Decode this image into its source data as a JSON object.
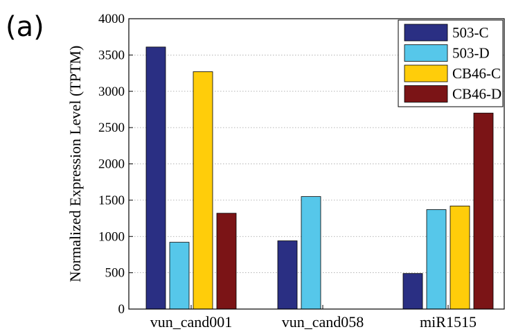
{
  "panel_label": "(a)",
  "chart_data": {
    "type": "bar",
    "title": "",
    "xlabel": "",
    "ylabel": "Normalized Expression Level (TPTM)",
    "ylim": [
      0,
      4000
    ],
    "yticks": [
      0,
      500,
      1000,
      1500,
      2000,
      2500,
      3000,
      3500,
      4000
    ],
    "grid": "horizontal dotted",
    "legend_position": "top-right",
    "categories": [
      "vun_cand001",
      "vun_cand058",
      "miR1515"
    ],
    "series": [
      {
        "name": "503-C",
        "color": "#2a2f83",
        "values": [
          3610,
          940,
          490
        ]
      },
      {
        "name": "503-D",
        "color": "#56c7ea",
        "values": [
          920,
          1550,
          1370
        ]
      },
      {
        "name": "CB46-C",
        "color": "#ffcd0a",
        "values": [
          3270,
          0,
          1420
        ]
      },
      {
        "name": "CB46-D",
        "color": "#7b1416",
        "values": [
          1320,
          0,
          2700
        ]
      }
    ]
  }
}
